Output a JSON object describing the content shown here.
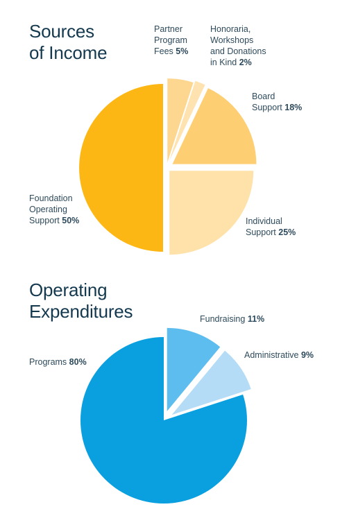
{
  "chart_data": [
    {
      "type": "pie",
      "title": [
        "Sources",
        "of Income"
      ],
      "start_angle_deg": 0,
      "exploded": true,
      "slices": [
        {
          "label_lines": [
            "Partner",
            "Program"
          ],
          "last_line": "Fees",
          "pct_text": "5%",
          "value": 5,
          "color": "#fdd78f"
        },
        {
          "label_lines": [
            "Honoraria,",
            "Workshops",
            "and Donations"
          ],
          "last_line": "in Kind",
          "pct_text": "2%",
          "value": 2,
          "color": "#fee3b0"
        },
        {
          "label_lines": [
            "Board"
          ],
          "last_line": "Support",
          "pct_text": "18%",
          "value": 18,
          "color": "#fece73"
        },
        {
          "label_lines": [
            "Individual"
          ],
          "last_line": "Support",
          "pct_text": "25%",
          "value": 25,
          "color": "#ffe2aa"
        },
        {
          "label_lines": [
            "Foundation",
            "Operating"
          ],
          "last_line": "Support",
          "pct_text": "50%",
          "value": 50,
          "color": "#fdb714"
        }
      ]
    },
    {
      "type": "pie",
      "title": [
        "Operating",
        "Expenditures"
      ],
      "start_angle_deg": 0,
      "exploded": true,
      "slices": [
        {
          "label_lines": [],
          "last_line": "Fundraising",
          "pct_text": "11%",
          "value": 11,
          "color": "#5dbdee"
        },
        {
          "label_lines": [],
          "last_line": "Administrative",
          "pct_text": "9%",
          "value": 9,
          "color": "#b4dcf6"
        },
        {
          "label_lines": [],
          "last_line": "Programs",
          "pct_text": "80%",
          "value": 80,
          "color": "#0aa0df"
        }
      ]
    }
  ]
}
